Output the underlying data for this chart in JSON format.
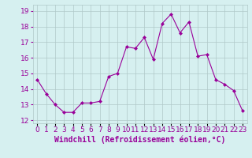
{
  "x": [
    0,
    1,
    2,
    3,
    4,
    5,
    6,
    7,
    8,
    9,
    10,
    11,
    12,
    13,
    14,
    15,
    16,
    17,
    18,
    19,
    20,
    21,
    22,
    23
  ],
  "y": [
    14.6,
    13.7,
    13.0,
    12.5,
    12.5,
    13.1,
    13.1,
    13.2,
    14.8,
    15.0,
    16.7,
    16.6,
    17.3,
    15.9,
    18.2,
    18.8,
    17.6,
    18.3,
    16.1,
    16.2,
    14.6,
    14.3,
    13.9,
    12.6
  ],
  "line_color": "#990099",
  "marker": "D",
  "marker_size": 2,
  "bg_color": "#d6f0f0",
  "grid_color": "#b0c8c8",
  "xlabel": "Windchill (Refroidissement éolien,°C)",
  "xlabel_color": "#990099",
  "ylabel_ticks": [
    12,
    13,
    14,
    15,
    16,
    17,
    18,
    19
  ],
  "ylim": [
    11.8,
    19.4
  ],
  "xlim": [
    -0.5,
    23.5
  ],
  "xtick_labels": [
    "0",
    "1",
    "2",
    "3",
    "4",
    "5",
    "6",
    "7",
    "8",
    "9",
    "10",
    "11",
    "12",
    "13",
    "14",
    "15",
    "16",
    "17",
    "18",
    "19",
    "20",
    "21",
    "22",
    "23"
  ],
  "font_size": 6.5,
  "xlabel_fontsize": 7
}
